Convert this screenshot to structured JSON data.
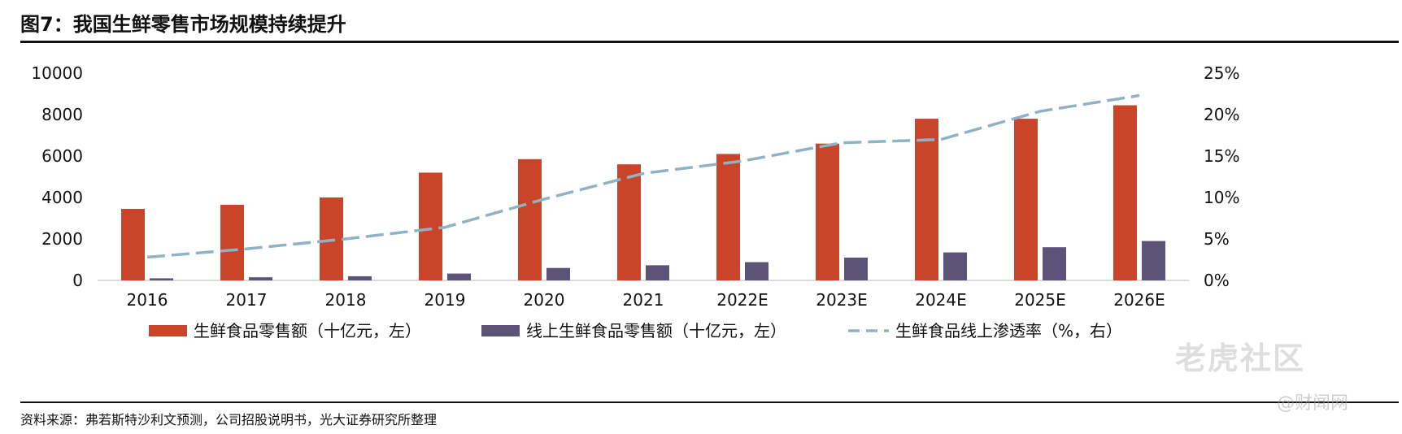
{
  "title": "图7：我国生鲜零售市场规模持续提升",
  "source": "资料来源：弗若斯特沙利文预测，公司招股说明书，光大证券研究所整理",
  "watermark": {
    "primary": "老虎社区",
    "secondary": "@财闻网"
  },
  "colors": {
    "bar_total": "#C94428",
    "bar_online": "#5B5478",
    "line": "#8FB3C5"
  },
  "chart_data": {
    "type": "bar",
    "categories": [
      "2016",
      "2017",
      "2018",
      "2019",
      "2020",
      "2021",
      "2022E",
      "2023E",
      "2024E",
      "2025E",
      "2026E"
    ],
    "series": [
      {
        "name": "生鲜食品零售额（十亿元，左）",
        "axis": "left",
        "kind": "bar",
        "values": [
          3450,
          3650,
          4000,
          5200,
          5850,
          5600,
          6100,
          6600,
          7800,
          7800,
          8450
        ]
      },
      {
        "name": "线上生鲜食品零售额（十亿元，左）",
        "axis": "left",
        "kind": "bar",
        "values": [
          100,
          150,
          200,
          330,
          600,
          730,
          880,
          1100,
          1350,
          1600,
          1900
        ]
      },
      {
        "name": "生鲜食品线上渗透率（%，右）",
        "axis": "right",
        "kind": "line",
        "values": [
          2.8,
          3.8,
          5.0,
          6.4,
          9.8,
          12.9,
          14.4,
          16.6,
          17.0,
          20.4,
          22.3
        ]
      }
    ],
    "left_axis": {
      "min": 0,
      "max": 10000,
      "ticks": [
        "0",
        "2000",
        "4000",
        "6000",
        "8000",
        "10000"
      ]
    },
    "right_axis": {
      "min": 0,
      "max": 25,
      "ticks": [
        "0%",
        "5%",
        "10%",
        "15%",
        "20%",
        "25%"
      ]
    },
    "legend_position": "bottom"
  }
}
